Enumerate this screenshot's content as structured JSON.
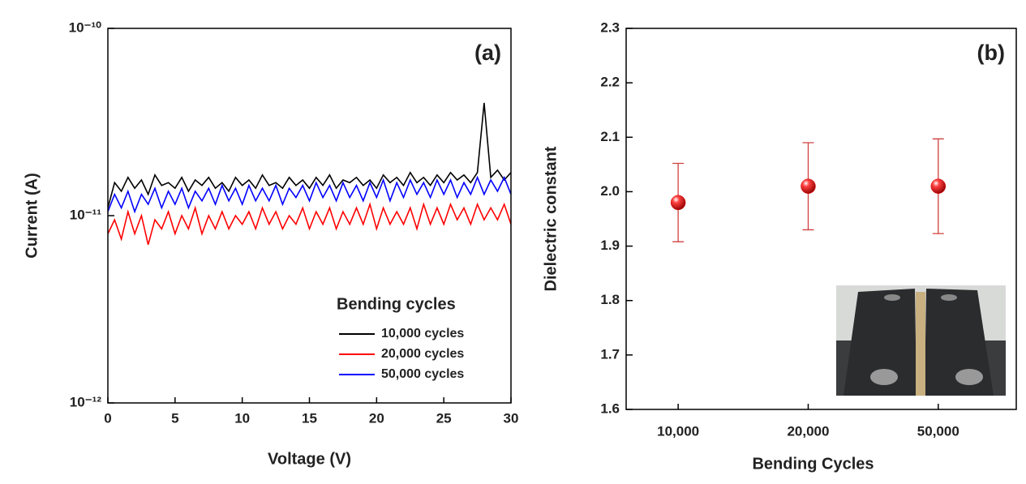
{
  "chart_data": [
    {
      "type": "line",
      "annotation": "(a)",
      "xlabel": "Voltage (V)",
      "ylabel": "Current (A)",
      "yscale": "log",
      "xlim": [
        0,
        30
      ],
      "xticks": [
        0,
        5,
        10,
        15,
        20,
        25,
        30
      ],
      "ylim": [
        1e-12,
        1e-10
      ],
      "yticks": [
        {
          "value": 1e-12,
          "label": "10⁻¹²"
        },
        {
          "value": 1e-11,
          "label": "10⁻¹¹"
        },
        {
          "value": 1e-10,
          "label": "10⁻¹⁰"
        }
      ],
      "legend": "lower right",
      "legend_title": "Bending cycles",
      "x": [
        0,
        0.5,
        1,
        1.5,
        2,
        2.5,
        3,
        3.5,
        4,
        4.5,
        5,
        5.5,
        6,
        6.5,
        7,
        7.5,
        8,
        8.5,
        9,
        9.5,
        10,
        10.5,
        11,
        11.5,
        12,
        12.5,
        13,
        13.5,
        14,
        14.5,
        15,
        15.5,
        16,
        16.5,
        17,
        17.5,
        18,
        18.5,
        19,
        19.5,
        20,
        20.5,
        21,
        21.5,
        22,
        22.5,
        23,
        23.5,
        24,
        24.5,
        25,
        25.5,
        26,
        26.5,
        27,
        27.5,
        28,
        28.5,
        29,
        29.5,
        30
      ],
      "series": [
        {
          "name": "10,000 cycles",
          "color": "#000000",
          "values": [
            1.1e-11,
            1.5e-11,
            1.35e-11,
            1.6e-11,
            1.4e-11,
            1.55e-11,
            1.3e-11,
            1.65e-11,
            1.45e-11,
            1.5e-11,
            1.4e-11,
            1.6e-11,
            1.35e-11,
            1.55e-11,
            1.45e-11,
            1.6e-11,
            1.4e-11,
            1.5e-11,
            1.35e-11,
            1.6e-11,
            1.45e-11,
            1.55e-11,
            1.4e-11,
            1.65e-11,
            1.45e-11,
            1.5e-11,
            1.4e-11,
            1.6e-11,
            1.45e-11,
            1.55e-11,
            1.4e-11,
            1.6e-11,
            1.45e-11,
            1.65e-11,
            1.4e-11,
            1.55e-11,
            1.5e-11,
            1.6e-11,
            1.45e-11,
            1.55e-11,
            1.4e-11,
            1.65e-11,
            1.5e-11,
            1.6e-11,
            1.45e-11,
            1.7e-11,
            1.5e-11,
            1.6e-11,
            1.45e-11,
            1.65e-11,
            1.5e-11,
            1.7e-11,
            1.55e-11,
            1.65e-11,
            1.5e-11,
            1.7e-11,
            4e-11,
            1.6e-11,
            1.75e-11,
            1.55e-11,
            1.7e-11
          ]
        },
        {
          "name": "20,000 cycles",
          "color": "#ff0000",
          "values": [
            8e-12,
            9.5e-12,
            7.5e-12,
            1.05e-11,
            8e-12,
            1e-11,
            7e-12,
            9.5e-12,
            8.5e-12,
            1.05e-11,
            8e-12,
            1e-11,
            8.5e-12,
            1.1e-11,
            8e-12,
            1e-11,
            8.5e-12,
            1.05e-11,
            8.5e-12,
            1e-11,
            9e-12,
            1.05e-11,
            8.5e-12,
            1.1e-11,
            9e-12,
            1.05e-11,
            8.5e-12,
            1e-11,
            9e-12,
            1.1e-11,
            8.5e-12,
            1.05e-11,
            9e-12,
            1.1e-11,
            8.5e-12,
            1.05e-11,
            9e-12,
            1.1e-11,
            9e-12,
            1.15e-11,
            8.5e-12,
            1.1e-11,
            9e-12,
            1.05e-11,
            9e-12,
            1.1e-11,
            8.5e-12,
            1.15e-11,
            9e-12,
            1.1e-11,
            9e-12,
            1.15e-11,
            9.5e-12,
            1.1e-11,
            9e-12,
            1.15e-11,
            9.5e-12,
            1.1e-11,
            9.5e-12,
            1.15e-11,
            9e-12
          ]
        },
        {
          "name": "50,000 cycles",
          "color": "#0000ff",
          "values": [
            1.05e-11,
            1.3e-11,
            1.1e-11,
            1.35e-11,
            1.05e-11,
            1.3e-11,
            1.15e-11,
            1.4e-11,
            1.1e-11,
            1.35e-11,
            1.15e-11,
            1.4e-11,
            1.1e-11,
            1.35e-11,
            1.2e-11,
            1.4e-11,
            1.15e-11,
            1.45e-11,
            1.2e-11,
            1.4e-11,
            1.15e-11,
            1.45e-11,
            1.2e-11,
            1.4e-11,
            1.2e-11,
            1.45e-11,
            1.15e-11,
            1.4e-11,
            1.25e-11,
            1.45e-11,
            1.2e-11,
            1.5e-11,
            1.25e-11,
            1.45e-11,
            1.2e-11,
            1.5e-11,
            1.25e-11,
            1.45e-11,
            1.2e-11,
            1.5e-11,
            1.25e-11,
            1.55e-11,
            1.2e-11,
            1.5e-11,
            1.25e-11,
            1.55e-11,
            1.3e-11,
            1.5e-11,
            1.25e-11,
            1.55e-11,
            1.3e-11,
            1.55e-11,
            1.25e-11,
            1.5e-11,
            1.3e-11,
            1.6e-11,
            1.3e-11,
            1.55e-11,
            1.35e-11,
            1.6e-11,
            1.3e-11
          ]
        }
      ]
    },
    {
      "type": "scatter",
      "annotation": "(b)",
      "xlabel": "Bending Cycles",
      "ylabel": "Dielectric constant",
      "categories": [
        "10,000",
        "20,000",
        "50,000"
      ],
      "values": [
        1.98,
        2.01,
        2.01
      ],
      "errors": [
        0.072,
        0.08,
        0.087
      ],
      "color": "#e00000",
      "error_color": "#d04040",
      "ylim": [
        1.6,
        2.3
      ],
      "yticks": [
        1.6,
        1.7,
        1.8,
        1.9,
        {
          "value": 2,
          "label": "2.0"
        },
        2.1,
        2.2,
        2.3
      ]
    }
  ]
}
